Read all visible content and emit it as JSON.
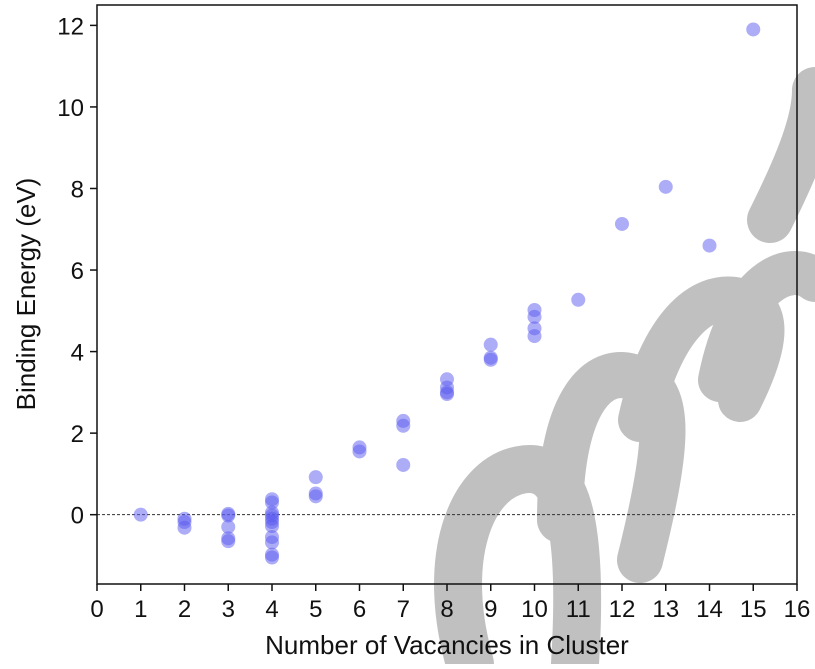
{
  "chart_data": {
    "type": "scatter",
    "xlabel": "Number of Vacancies in Cluster",
    "ylabel": "Binding Energy (eV)",
    "xlim": [
      0,
      16
    ],
    "ylim": [
      -1.7,
      12.5
    ],
    "xticks": [
      0,
      1,
      2,
      3,
      4,
      5,
      6,
      7,
      8,
      9,
      10,
      11,
      12,
      13,
      14,
      15,
      16
    ],
    "yticks": [
      0,
      2,
      4,
      6,
      8,
      10,
      12
    ],
    "reference_line_y": 0,
    "grid": false,
    "marker_color": "#5a5af0",
    "reference_line_color": "#333333",
    "watermark_color": "#bdbdbd",
    "series": [
      {
        "points": [
          [
            1,
            0.0
          ],
          [
            2,
            -0.1
          ],
          [
            2,
            -0.18
          ],
          [
            2,
            -0.32
          ],
          [
            3,
            0.02
          ],
          [
            3,
            -0.02
          ],
          [
            3,
            -0.3
          ],
          [
            3,
            -0.58
          ],
          [
            3,
            -0.65
          ],
          [
            4,
            0.38
          ],
          [
            4,
            0.3
          ],
          [
            4,
            0.05
          ],
          [
            4,
            -0.02
          ],
          [
            4,
            -0.1
          ],
          [
            4,
            -0.18
          ],
          [
            4,
            -0.28
          ],
          [
            4,
            -0.55
          ],
          [
            4,
            -0.68
          ],
          [
            4,
            -0.98
          ],
          [
            4,
            -1.05
          ],
          [
            5,
            0.92
          ],
          [
            5,
            0.52
          ],
          [
            5,
            0.45
          ],
          [
            6,
            1.65
          ],
          [
            6,
            1.55
          ],
          [
            7,
            2.3
          ],
          [
            7,
            2.18
          ],
          [
            7,
            1.22
          ],
          [
            8,
            3.32
          ],
          [
            8,
            3.12
          ],
          [
            8,
            3.0
          ],
          [
            8,
            2.96
          ],
          [
            9,
            4.17
          ],
          [
            9,
            3.85
          ],
          [
            9,
            3.8
          ],
          [
            10,
            5.02
          ],
          [
            10,
            4.85
          ],
          [
            10,
            4.57
          ],
          [
            10,
            4.38
          ],
          [
            11,
            5.27
          ],
          [
            12,
            7.13
          ],
          [
            13,
            8.04
          ],
          [
            14,
            6.6
          ],
          [
            15,
            11.9
          ]
        ]
      }
    ]
  }
}
